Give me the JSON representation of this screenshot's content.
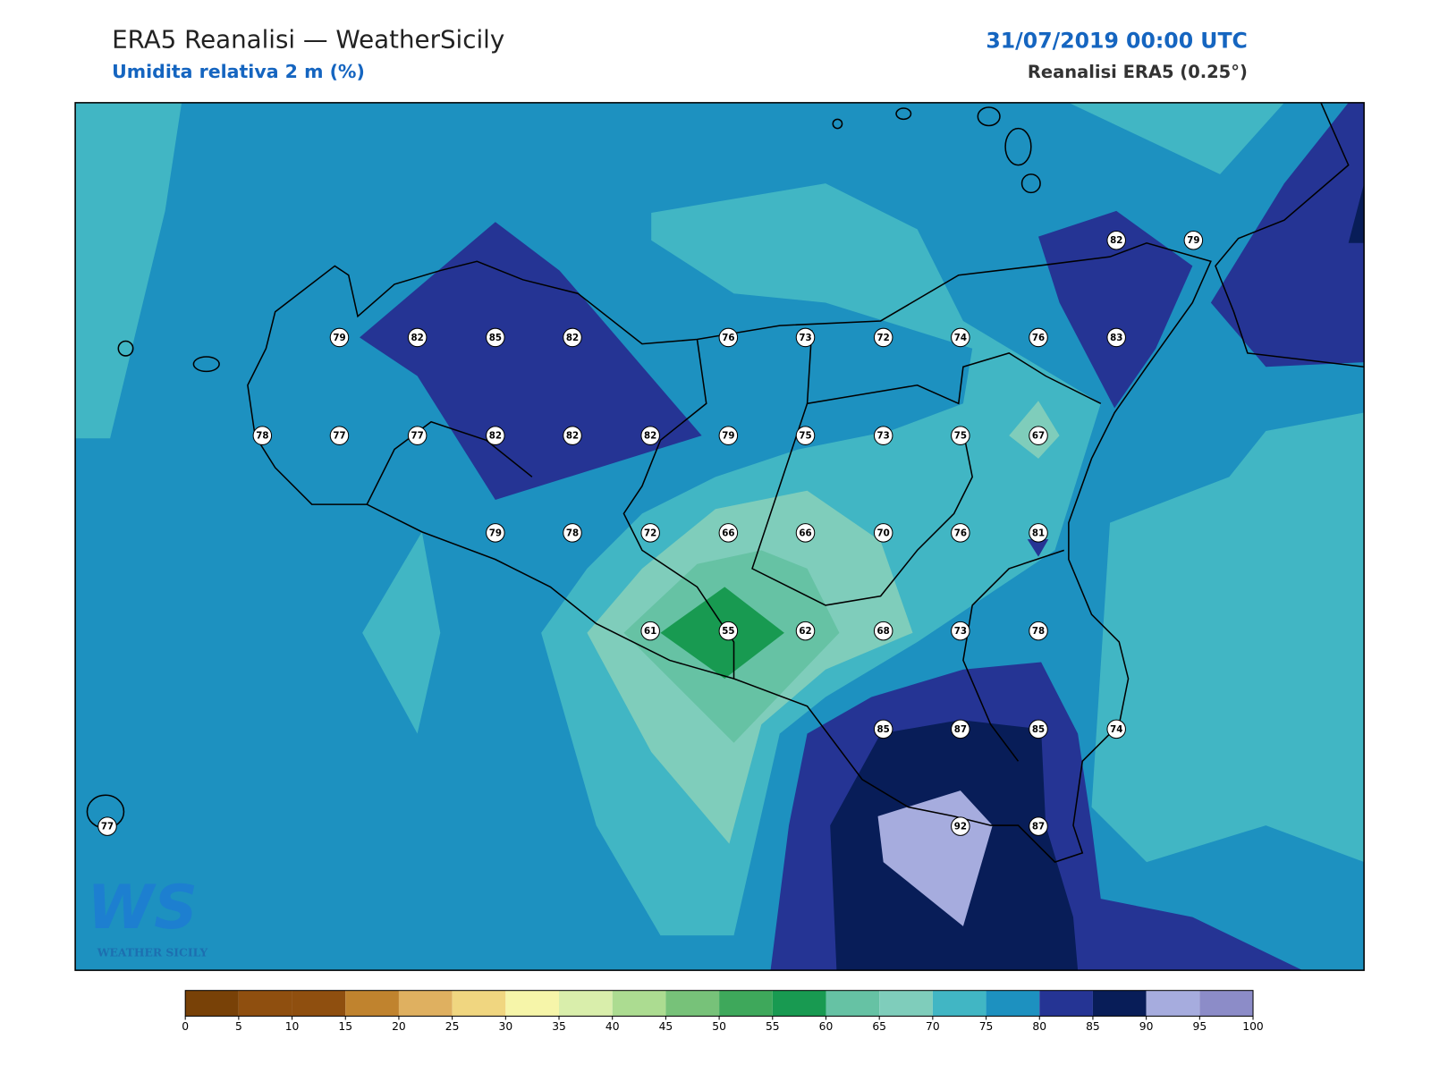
{
  "header": {
    "title": "ERA5 Reanalisi — WeatherSicily",
    "subtitle": "Umidita relativa 2 m (%)",
    "datetime": "31/07/2019 00:00 UTC",
    "source": "Reanalisi ERA5 (0.25°)"
  },
  "logo": {
    "mark": "WS",
    "text": "WEATHER SICILY"
  },
  "stations": [
    82,
    79,
    79,
    82,
    85,
    82,
    76,
    73,
    72,
    74,
    76,
    83,
    78,
    77,
    77,
    82,
    82,
    82,
    79,
    75,
    73,
    75,
    67,
    79,
    78,
    72,
    66,
    66,
    70,
    76,
    81,
    61,
    55,
    62,
    68,
    73,
    78,
    85,
    87,
    85,
    74,
    77,
    92,
    87
  ],
  "colorbar": {
    "ticks": [
      0,
      5,
      10,
      15,
      20,
      25,
      30,
      35,
      40,
      45,
      50,
      55,
      60,
      65,
      70,
      75,
      80,
      85,
      90,
      95,
      100
    ],
    "colors": [
      "#784107",
      "#8f4f0f",
      "#8f4f0f",
      "#c0832e",
      "#dfb060",
      "#f0d680",
      "#f6f5a9",
      "#d9eeab",
      "#acdc91",
      "#77c279",
      "#3ea85b",
      "#189a51",
      "#66c2a4",
      "#7fcdbb",
      "#41b6c4",
      "#1d91c0",
      "#253494",
      "#081d58",
      "#a6acde",
      "#8c8cc8"
    ]
  }
}
